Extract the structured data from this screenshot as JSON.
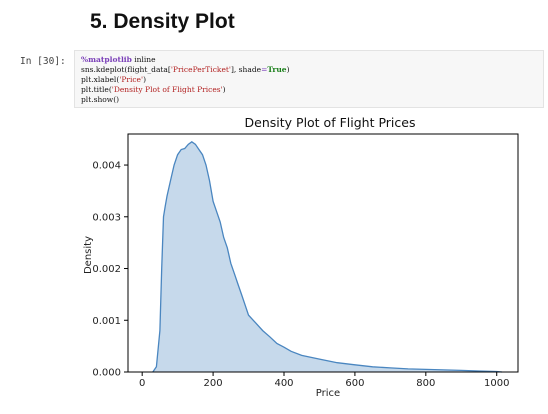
{
  "notebook": {
    "section_heading": "5. Density Plot",
    "prompt": "In [30]:",
    "code": {
      "magic": "%matplotlib",
      "magic_arg": " inline",
      "line2_a": "sns.kdeplot(flight_data[",
      "line2_str": "'PricePerTicket'",
      "line2_b": "], shade",
      "line2_eq": "=",
      "line2_true": "True",
      "line2_c": ")",
      "line3_a": "plt.xlabel(",
      "line3_str": "'Price'",
      "line3_b": ")",
      "line4_a": "plt.title(",
      "line4_str": "'Density Plot of Flight Prices'",
      "line4_b": ")",
      "line5": "plt.show()"
    }
  },
  "chart_data": {
    "type": "area",
    "title": "Density Plot of Flight Prices",
    "xlabel": "Price",
    "ylabel": "Density",
    "xlim": [
      -40,
      1060
    ],
    "ylim": [
      0,
      0.0046
    ],
    "xticks": [
      0,
      200,
      400,
      600,
      800,
      1000
    ],
    "yticks": [
      0.0,
      0.001,
      0.002,
      0.003,
      0.004
    ],
    "ytick_labels": [
      "0.000",
      "0.001",
      "0.002",
      "0.003",
      "0.004"
    ],
    "grid": false,
    "line_color": "#4a86c0",
    "fill_color": "#c6d9eb",
    "series": [
      {
        "x": [
          30,
          40,
          50,
          55,
          60,
          65,
          70,
          80,
          90,
          100,
          110,
          120,
          130,
          140,
          150,
          160,
          170,
          180,
          190,
          200,
          210,
          220,
          230,
          240,
          250,
          260,
          270,
          280,
          290,
          300,
          320,
          340,
          360,
          380,
          400,
          420,
          450,
          500,
          550,
          600,
          650,
          700,
          750,
          800,
          850,
          900,
          950,
          1000,
          1015
        ],
        "y": [
          0.0,
          0.0001,
          0.0008,
          0.002,
          0.003,
          0.0032,
          0.0034,
          0.0037,
          0.004,
          0.0042,
          0.0043,
          0.00432,
          0.0044,
          0.00445,
          0.0044,
          0.0043,
          0.0042,
          0.004,
          0.0037,
          0.0033,
          0.0031,
          0.0029,
          0.0026,
          0.0024,
          0.0021,
          0.0019,
          0.0017,
          0.0015,
          0.0013,
          0.0011,
          0.00095,
          0.0008,
          0.00068,
          0.00055,
          0.00048,
          0.0004,
          0.00032,
          0.00025,
          0.00018,
          0.00014,
          0.0001,
          8e-05,
          6e-05,
          5e-05,
          4e-05,
          3e-05,
          2e-05,
          1e-05,
          0.0
        ]
      }
    ]
  }
}
